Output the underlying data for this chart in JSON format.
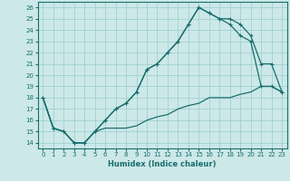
{
  "xlabel": "Humidex (Indice chaleur)",
  "background_color": "#cce8e8",
  "grid_color": "#99cccc",
  "line_color": "#1a6e6e",
  "xlim": [
    -0.5,
    23.5
  ],
  "ylim": [
    13.5,
    26.5
  ],
  "xticks": [
    0,
    1,
    2,
    3,
    4,
    5,
    6,
    7,
    8,
    9,
    10,
    11,
    12,
    13,
    14,
    15,
    16,
    17,
    18,
    19,
    20,
    21,
    22,
    23
  ],
  "yticks": [
    14,
    15,
    16,
    17,
    18,
    19,
    20,
    21,
    22,
    23,
    24,
    25,
    26
  ],
  "s1_x": [
    0,
    1,
    2,
    3,
    4,
    5,
    6,
    7,
    8,
    9,
    10,
    11,
    12,
    13,
    14,
    15,
    16,
    17,
    18,
    19,
    20,
    21,
    22,
    23
  ],
  "s1_y": [
    18,
    15.3,
    15,
    14,
    14,
    15,
    15.3,
    15.3,
    15.3,
    15.5,
    16,
    16.3,
    16.5,
    17,
    17.3,
    17.5,
    18,
    18,
    18,
    18.3,
    18.5,
    19,
    19,
    18.5
  ],
  "s2_x": [
    0,
    1,
    2,
    3,
    4,
    5,
    6,
    7,
    8,
    9,
    10,
    11,
    12,
    13,
    14,
    15,
    16,
    17,
    18,
    19,
    20,
    21,
    22,
    23
  ],
  "s2_y": [
    18,
    15.3,
    15,
    14,
    14,
    15,
    16,
    17,
    17.5,
    18.5,
    20.5,
    21,
    22,
    23,
    24.5,
    26,
    25.5,
    25,
    24.5,
    23.5,
    23,
    19,
    19,
    18.5
  ],
  "s3_x": [
    0,
    1,
    2,
    3,
    4,
    5,
    6,
    7,
    8,
    9,
    10,
    11,
    12,
    13,
    14,
    15,
    16,
    17,
    18,
    19,
    20,
    21,
    22,
    23
  ],
  "s3_y": [
    18,
    15.3,
    15,
    14,
    14,
    15,
    16,
    17,
    17.5,
    18.5,
    20.5,
    21,
    22,
    23,
    24.5,
    26,
    25.5,
    25,
    25,
    24.5,
    23.5,
    21,
    21,
    18.5
  ]
}
